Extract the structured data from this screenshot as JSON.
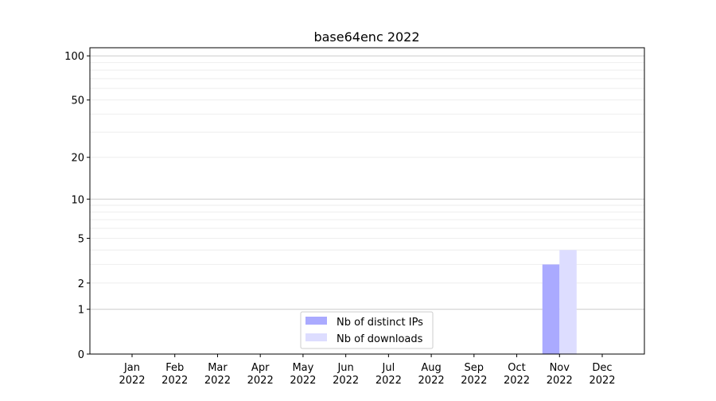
{
  "chart_data": {
    "type": "bar",
    "title": "base64enc 2022",
    "xlabel": "",
    "ylabel": "",
    "yscale": "log(1+y)",
    "ylim": [
      0,
      113
    ],
    "yticks": [
      0,
      1,
      2,
      5,
      10,
      20,
      50,
      100
    ],
    "ytick_labels": [
      "0",
      "1",
      "2",
      "5",
      "10",
      "20",
      "50",
      "100"
    ],
    "grid": true,
    "legend_position": "bottom-center",
    "categories": [
      "Jan\n2022",
      "Feb\n2022",
      "Mar\n2022",
      "Apr\n2022",
      "May\n2022",
      "Jun\n2022",
      "Jul\n2022",
      "Aug\n2022",
      "Sep\n2022",
      "Oct\n2022",
      "Nov\n2022",
      "Dec\n2022"
    ],
    "month_labels": [
      "Jan",
      "Feb",
      "Mar",
      "Apr",
      "May",
      "Jun",
      "Jul",
      "Aug",
      "Sep",
      "Oct",
      "Nov",
      "Dec"
    ],
    "year_label": "2022",
    "series": [
      {
        "name": "Nb of distinct IPs",
        "color": "#aaaaff",
        "values": [
          0,
          0,
          0,
          0,
          0,
          0,
          0,
          0,
          0,
          0,
          3,
          0
        ]
      },
      {
        "name": "Nb of downloads",
        "color": "#ddddff",
        "values": [
          0,
          0,
          0,
          0,
          0,
          0,
          0,
          0,
          0,
          0,
          4,
          0
        ]
      }
    ]
  }
}
